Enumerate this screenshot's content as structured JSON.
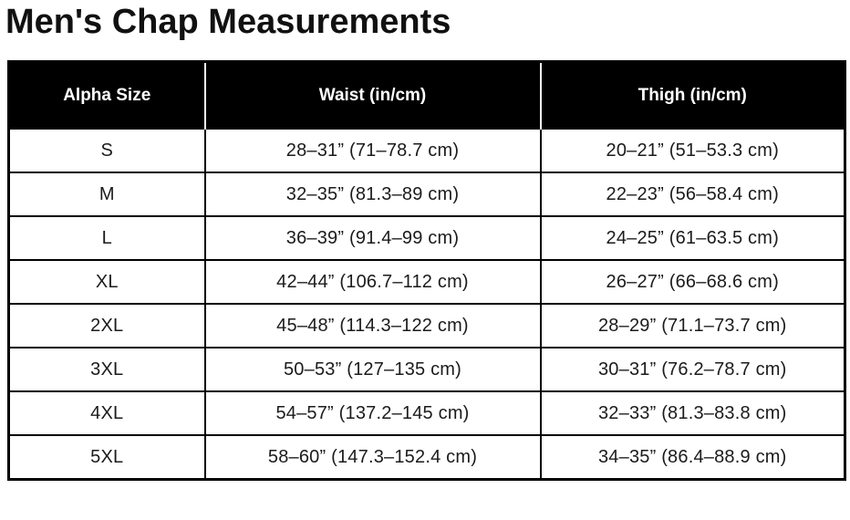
{
  "page_title": "Men's Chap Measurements",
  "colors": {
    "background": "#ffffff",
    "header_background": "#000000",
    "header_text": "#ffffff",
    "border": "#000000",
    "body_text": "#1b1b1b"
  },
  "chart_data": {
    "type": "table",
    "title": "Men's Chap Measurements",
    "columns": [
      "Alpha Size",
      "Waist (in/cm)",
      "Thigh (in/cm)"
    ],
    "rows": [
      {
        "size": "S",
        "waist": "28–31” (71–78.7 cm)",
        "thigh": "20–21” (51–53.3 cm)"
      },
      {
        "size": "M",
        "waist": "32–35” (81.3–89 cm)",
        "thigh": "22–23” (56–58.4 cm)"
      },
      {
        "size": "L",
        "waist": "36–39” (91.4–99 cm)",
        "thigh": "24–25” (61–63.5 cm)"
      },
      {
        "size": "XL",
        "waist": "42–44” (106.7–112 cm)",
        "thigh": "26–27” (66–68.6 cm)"
      },
      {
        "size": "2XL",
        "waist": "45–48” (114.3–122 cm)",
        "thigh": "28–29” (71.1–73.7 cm)"
      },
      {
        "size": "3XL",
        "waist": "50–53” (127–135 cm)",
        "thigh": "30–31” (76.2–78.7 cm)"
      },
      {
        "size": "4XL",
        "waist": "54–57” (137.2–145 cm)",
        "thigh": "32–33” (81.3–83.8 cm)"
      },
      {
        "size": "5XL",
        "waist": "58–60” (147.3–152.4 cm)",
        "thigh": "34–35” (86.4–88.9 cm)"
      }
    ]
  }
}
